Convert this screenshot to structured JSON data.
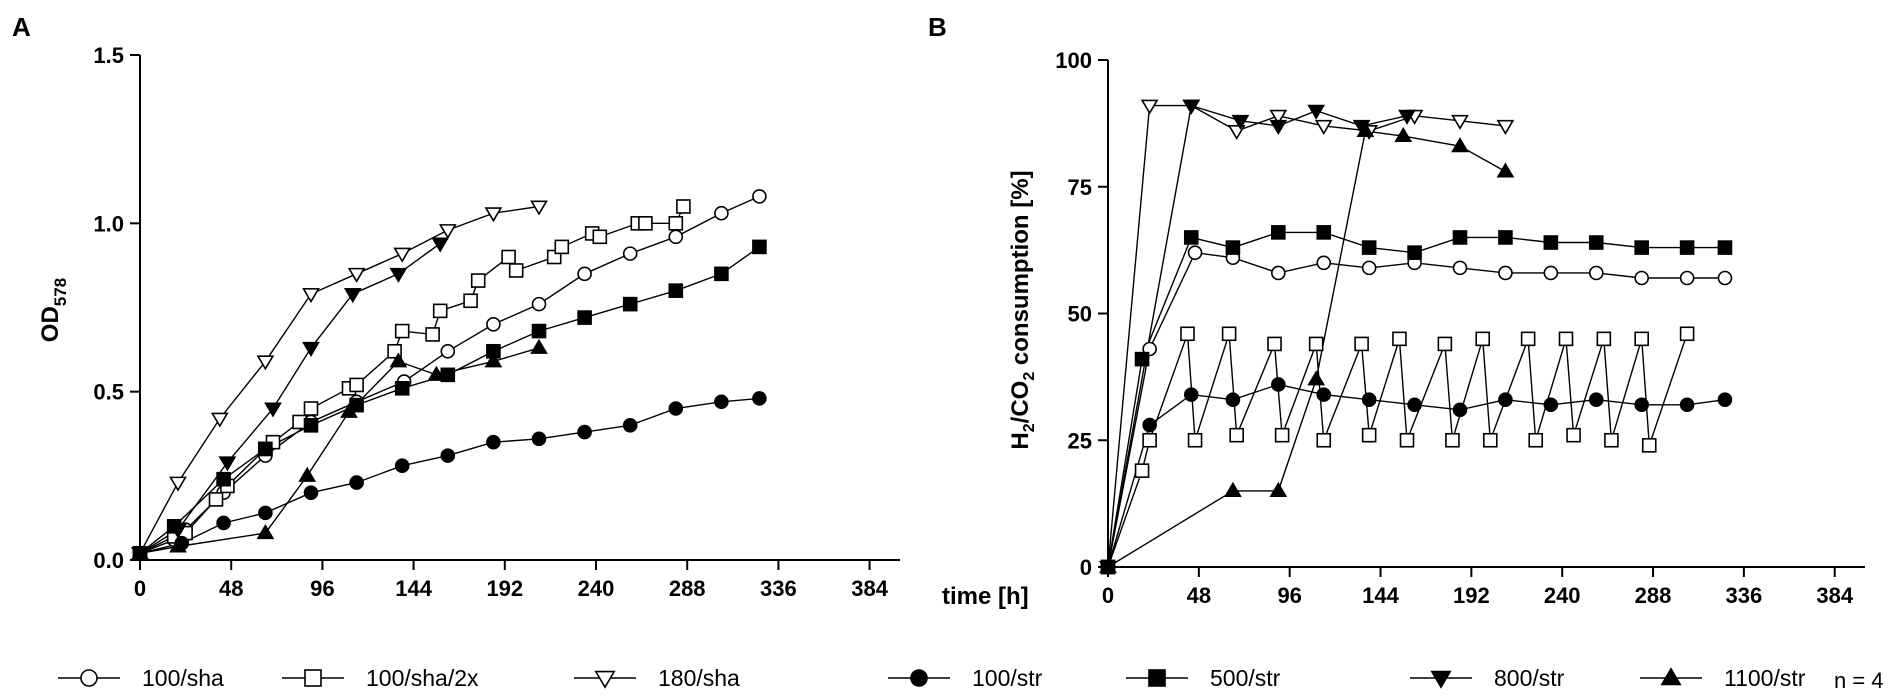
{
  "legend": {
    "items": [
      {
        "label": "100/sha",
        "marker": "circle",
        "filled": false
      },
      {
        "label": "100/sha/2x",
        "marker": "square",
        "filled": false
      },
      {
        "label": "180/sha",
        "marker": "tri-down",
        "filled": false
      },
      {
        "label": "100/str",
        "marker": "circle",
        "filled": true
      },
      {
        "label": "500/str",
        "marker": "square",
        "filled": true
      },
      {
        "label": "800/str",
        "marker": "tri-down",
        "filled": true
      },
      {
        "label": "1100/str",
        "marker": "tri-up",
        "filled": true
      }
    ],
    "n_label": "n = 4"
  },
  "chart_data": [
    {
      "panel": "A",
      "type": "line",
      "title": "",
      "xlabel": "time [h]",
      "ylabel_main": "OD",
      "ylabel_sub": "578",
      "xlim": [
        0,
        400
      ],
      "ylim": [
        0,
        1.5
      ],
      "xticks": [
        0,
        48,
        96,
        144,
        192,
        240,
        288,
        336,
        384
      ],
      "yticks": [
        0.0,
        0.5,
        1.0,
        1.5
      ],
      "ytick_labels": [
        "0.0",
        "0.5",
        "1.0",
        "1.5"
      ],
      "series": [
        {
          "name": "100/sha",
          "marker": "circle",
          "filled": false,
          "x": [
            0,
            18,
            24,
            44,
            66,
            90,
            114,
            139,
            162,
            186,
            210,
            234,
            258,
            282,
            306,
            326
          ],
          "y": [
            0.02,
            0.06,
            0.09,
            0.2,
            0.31,
            0.41,
            0.47,
            0.53,
            0.62,
            0.7,
            0.76,
            0.85,
            0.91,
            0.96,
            1.03,
            1.08
          ]
        },
        {
          "name": "100/sha/2x",
          "marker": "square",
          "filled": false,
          "x": [
            0,
            18,
            24,
            40,
            46,
            66,
            70,
            84,
            90,
            110,
            114,
            134,
            138,
            154,
            158,
            174,
            178,
            194,
            198,
            218,
            222,
            238,
            242,
            262,
            266,
            282,
            286
          ],
          "y": [
            0.02,
            0.07,
            0.08,
            0.18,
            0.22,
            0.33,
            0.35,
            0.41,
            0.45,
            0.51,
            0.52,
            0.62,
            0.68,
            0.67,
            0.74,
            0.77,
            0.83,
            0.9,
            0.86,
            0.9,
            0.93,
            0.97,
            0.96,
            1.0,
            1.0,
            1.0,
            1.05
          ]
        },
        {
          "name": "180/sha",
          "marker": "tri-down",
          "filled": false,
          "x": [
            0,
            20,
            42,
            66,
            90,
            114,
            138,
            162,
            186,
            210
          ],
          "y": [
            0.02,
            0.23,
            0.42,
            0.59,
            0.79,
            0.85,
            0.91,
            0.98,
            1.03,
            1.05
          ]
        },
        {
          "name": "100/str",
          "marker": "circle",
          "filled": true,
          "x": [
            0,
            22,
            44,
            66,
            90,
            114,
            138,
            162,
            186,
            210,
            234,
            258,
            282,
            306,
            326
          ],
          "y": [
            0.02,
            0.05,
            0.11,
            0.14,
            0.2,
            0.23,
            0.28,
            0.31,
            0.35,
            0.36,
            0.38,
            0.4,
            0.45,
            0.47,
            0.48
          ]
        },
        {
          "name": "500/str",
          "marker": "square",
          "filled": true,
          "x": [
            0,
            18,
            44,
            66,
            90,
            114,
            138,
            162,
            186,
            210,
            234,
            258,
            282,
            306,
            326
          ],
          "y": [
            0.02,
            0.1,
            0.24,
            0.33,
            0.4,
            0.46,
            0.51,
            0.55,
            0.62,
            0.68,
            0.72,
            0.76,
            0.8,
            0.85,
            0.93
          ]
        },
        {
          "name": "800/str",
          "marker": "tri-down",
          "filled": true,
          "x": [
            0,
            20,
            46,
            70,
            90,
            112,
            136,
            158
          ],
          "y": [
            0.02,
            0.09,
            0.29,
            0.45,
            0.63,
            0.79,
            0.85,
            0.94
          ]
        },
        {
          "name": "1100/str",
          "marker": "tri-up",
          "filled": true,
          "x": [
            0,
            20,
            66,
            88,
            110,
            136,
            156,
            186,
            210
          ],
          "y": [
            0.02,
            0.04,
            0.08,
            0.25,
            0.44,
            0.59,
            0.55,
            0.59,
            0.63
          ]
        }
      ]
    },
    {
      "panel": "B",
      "type": "line",
      "title": "",
      "xlabel": "",
      "ylabel": "H2/CO2 consumption [%]",
      "xlim": [
        0,
        400
      ],
      "ylim": [
        0,
        100
      ],
      "xticks": [
        0,
        48,
        96,
        144,
        192,
        240,
        288,
        336,
        384
      ],
      "yticks": [
        0,
        25,
        50,
        75,
        100
      ],
      "series": [
        {
          "name": "100/sha",
          "marker": "circle",
          "filled": false,
          "x": [
            0,
            22,
            46,
            66,
            90,
            114,
            138,
            162,
            186,
            210,
            234,
            258,
            282,
            306,
            326
          ],
          "y": [
            0,
            43,
            62,
            61,
            58,
            60,
            59,
            60,
            59,
            58,
            58,
            58,
            57,
            57,
            57
          ]
        },
        {
          "name": "100/sha/2x",
          "marker": "square",
          "filled": false,
          "x": [
            0,
            18,
            22,
            42,
            46,
            64,
            68,
            88,
            92,
            110,
            114,
            134,
            138,
            154,
            158,
            178,
            182,
            198,
            202,
            222,
            226,
            242,
            246,
            262,
            266,
            282,
            286,
            306
          ],
          "y": [
            0,
            19,
            25,
            46,
            25,
            46,
            26,
            44,
            26,
            44,
            25,
            44,
            26,
            45,
            25,
            44,
            25,
            45,
            25,
            45,
            25,
            45,
            26,
            45,
            25,
            45,
            24,
            46
          ]
        },
        {
          "name": "180/sha",
          "marker": "tri-down",
          "filled": false,
          "x": [
            0,
            22,
            44,
            68,
            90,
            114,
            138,
            162,
            186,
            210
          ],
          "y": [
            0,
            91,
            91,
            86,
            89,
            87,
            86,
            89,
            88,
            87
          ]
        },
        {
          "name": "100/str",
          "marker": "circle",
          "filled": true,
          "x": [
            0,
            22,
            44,
            66,
            90,
            114,
            138,
            162,
            186,
            210,
            234,
            258,
            282,
            306,
            326
          ],
          "y": [
            0,
            28,
            34,
            33,
            36,
            34,
            33,
            32,
            31,
            33,
            32,
            33,
            32,
            32,
            33
          ]
        },
        {
          "name": "500/str",
          "marker": "square",
          "filled": true,
          "x": [
            0,
            18,
            44,
            66,
            90,
            114,
            138,
            162,
            186,
            210,
            234,
            258,
            282,
            306,
            326
          ],
          "y": [
            0,
            41,
            65,
            63,
            66,
            66,
            63,
            62,
            65,
            65,
            64,
            64,
            63,
            63,
            63
          ]
        },
        {
          "name": "800/str",
          "marker": "tri-down",
          "filled": true,
          "x": [
            0,
            44,
            70,
            90,
            110,
            134,
            158
          ],
          "y": [
            0,
            91,
            88,
            87,
            90,
            87,
            89
          ]
        },
        {
          "name": "1100/str",
          "marker": "tri-up",
          "filled": true,
          "x": [
            0,
            66,
            90,
            110,
            136,
            156,
            186,
            210
          ],
          "y": [
            0,
            15,
            15,
            37,
            86,
            85,
            83,
            78
          ]
        }
      ]
    }
  ]
}
